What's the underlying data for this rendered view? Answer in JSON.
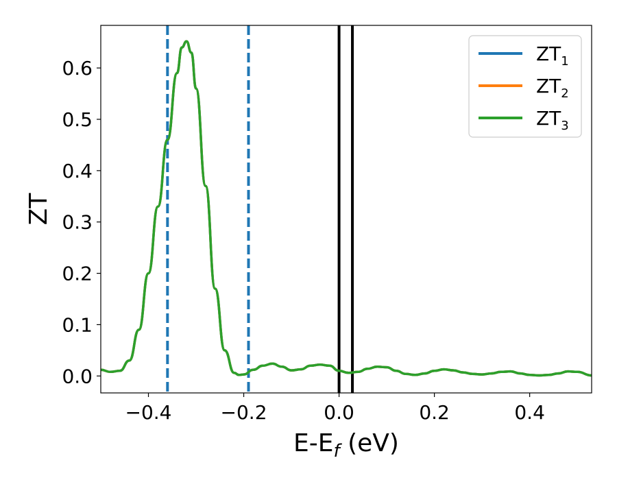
{
  "chart_data": {
    "type": "line",
    "xlabel_main": "E-E",
    "xlabel_sub": "f",
    "xlabel_unit": " (eV)",
    "ylabel": "ZT",
    "xlim": [
      -0.5,
      0.53
    ],
    "ylim": [
      -0.033,
      0.683
    ],
    "xticks": [
      -0.4,
      -0.2,
      0.0,
      0.2,
      0.4
    ],
    "xtick_labels": [
      "−0.4",
      "−0.2",
      "0.0",
      "0.2",
      "0.4"
    ],
    "yticks": [
      0.0,
      0.1,
      0.2,
      0.3,
      0.4,
      0.5,
      0.6
    ],
    "ytick_labels": [
      "0.0",
      "0.1",
      "0.2",
      "0.3",
      "0.4",
      "0.5",
      "0.6"
    ],
    "grid": false,
    "legend_position": "top-right",
    "series": [
      {
        "name": "ZT",
        "subscript": "1",
        "color": "#1f77b4",
        "x": [
          -0.5,
          -0.48,
          -0.46,
          -0.44,
          -0.42,
          -0.4,
          -0.38,
          -0.36,
          -0.34,
          -0.33,
          -0.32,
          -0.31,
          -0.3,
          -0.28,
          -0.26,
          -0.24,
          -0.22,
          -0.21,
          -0.2,
          -0.18,
          -0.16,
          -0.14,
          -0.12,
          -0.1,
          -0.08,
          -0.06,
          -0.04,
          -0.02,
          0.0,
          0.02,
          0.04,
          0.06,
          0.08,
          0.1,
          0.12,
          0.14,
          0.16,
          0.18,
          0.2,
          0.22,
          0.24,
          0.26,
          0.28,
          0.3,
          0.32,
          0.34,
          0.36,
          0.38,
          0.4,
          0.42,
          0.44,
          0.46,
          0.48,
          0.5,
          0.53
        ],
        "y": [
          0.012,
          0.008,
          0.01,
          0.03,
          0.09,
          0.2,
          0.33,
          0.46,
          0.59,
          0.64,
          0.652,
          0.63,
          0.56,
          0.37,
          0.17,
          0.05,
          0.006,
          0.002,
          0.003,
          0.012,
          0.02,
          0.024,
          0.018,
          0.011,
          0.013,
          0.02,
          0.022,
          0.02,
          0.01,
          0.006,
          0.008,
          0.014,
          0.018,
          0.017,
          0.01,
          0.004,
          0.002,
          0.005,
          0.01,
          0.013,
          0.011,
          0.007,
          0.004,
          0.003,
          0.005,
          0.008,
          0.009,
          0.005,
          0.002,
          0.001,
          0.002,
          0.005,
          0.009,
          0.008,
          0.001
        ]
      },
      {
        "name": "ZT",
        "subscript": "2",
        "color": "#ff7f0e",
        "same_as": 0
      },
      {
        "name": "ZT",
        "subscript": "3",
        "color": "#2ca02c",
        "same_as": 0
      }
    ],
    "vlines": [
      {
        "x": -0.36,
        "color": "#1f77b4",
        "style": "dashed"
      },
      {
        "x": -0.19,
        "color": "#1f77b4",
        "style": "dashed"
      },
      {
        "x": 0.0,
        "color": "#000000",
        "style": "solid"
      },
      {
        "x": 0.028,
        "color": "#000000",
        "style": "solid"
      }
    ]
  }
}
